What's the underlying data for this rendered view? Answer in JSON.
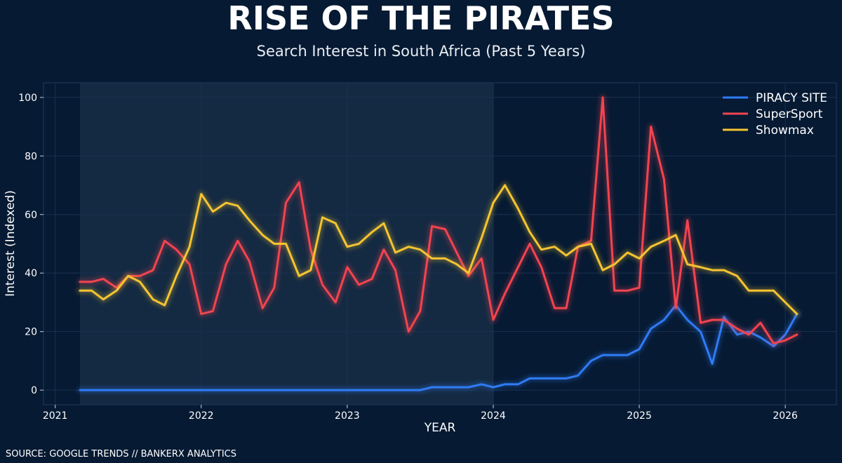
{
  "colors": {
    "background": "#061a33",
    "highlight_band": "#142a42",
    "grid": "#1a3050",
    "piracy": "#2f7bf5",
    "supersport": "#f2444f",
    "showmax": "#f5c431"
  },
  "chart_data": {
    "type": "line",
    "title": "RISE OF THE PIRATES",
    "subtitle": "Search Interest in South Africa (Past 5 Years)",
    "xlabel": "YEAR",
    "ylabel": "Interest (Indexed)",
    "source": "SOURCE: GOOGLE TRENDS // BANKERX ANALYTICS",
    "xlim": [
      2020.92,
      2026.35
    ],
    "ylim": [
      -5,
      105
    ],
    "xticks": [
      2021,
      2022,
      2023,
      2024,
      2025,
      2026
    ],
    "xtick_labels": [
      "2021",
      "2022",
      "2023",
      "2024",
      "2025",
      "2026"
    ],
    "yticks": [
      0,
      20,
      40,
      60,
      80,
      100
    ],
    "ytick_labels": [
      "0",
      "20",
      "40",
      "60",
      "80",
      "100"
    ],
    "grid": true,
    "legend_position": "top-right",
    "highlight_range": [
      2021.17,
      2024.0
    ],
    "series": [
      {
        "name": "PIRACY SITE",
        "color": "#2f7bf5",
        "x": [
          2021.17,
          2021.25,
          2021.33,
          2021.42,
          2021.5,
          2021.58,
          2021.67,
          2021.75,
          2021.83,
          2021.92,
          2022.0,
          2022.08,
          2022.17,
          2022.25,
          2022.33,
          2022.42,
          2022.5,
          2022.58,
          2022.67,
          2022.75,
          2022.83,
          2022.92,
          2023.0,
          2023.08,
          2023.17,
          2023.25,
          2023.33,
          2023.42,
          2023.5,
          2023.58,
          2023.67,
          2023.75,
          2023.83,
          2023.92,
          2024.0,
          2024.08,
          2024.17,
          2024.25,
          2024.33,
          2024.42,
          2024.5,
          2024.58,
          2024.67,
          2024.75,
          2024.83,
          2024.92,
          2025.0,
          2025.08,
          2025.17,
          2025.25,
          2025.33,
          2025.42,
          2025.5,
          2025.58,
          2025.67,
          2025.75,
          2025.83,
          2025.92,
          2026.0,
          2026.08
        ],
        "y": [
          0,
          0,
          0,
          0,
          0,
          0,
          0,
          0,
          0,
          0,
          0,
          0,
          0,
          0,
          0,
          0,
          0,
          0,
          0,
          0,
          0,
          0,
          0,
          0,
          0,
          0,
          0,
          0,
          0,
          1,
          1,
          1,
          1,
          2,
          1,
          2,
          2,
          4,
          4,
          4,
          4,
          5,
          10,
          12,
          12,
          12,
          14,
          21,
          24,
          29,
          24,
          20,
          9,
          25,
          19,
          20,
          18,
          15,
          19,
          26
        ]
      },
      {
        "name": "SuperSport",
        "color": "#f2444f",
        "x": [
          2021.17,
          2021.25,
          2021.33,
          2021.42,
          2021.5,
          2021.58,
          2021.67,
          2021.75,
          2021.83,
          2021.92,
          2022.0,
          2022.08,
          2022.17,
          2022.25,
          2022.33,
          2022.42,
          2022.5,
          2022.58,
          2022.67,
          2022.75,
          2022.83,
          2022.92,
          2023.0,
          2023.08,
          2023.17,
          2023.25,
          2023.33,
          2023.42,
          2023.5,
          2023.58,
          2023.67,
          2023.75,
          2023.83,
          2023.92,
          2024.0,
          2024.08,
          2024.17,
          2024.25,
          2024.33,
          2024.42,
          2024.5,
          2024.58,
          2024.67,
          2024.75,
          2024.83,
          2024.92,
          2025.0,
          2025.08,
          2025.17,
          2025.25,
          2025.33,
          2025.42,
          2025.5,
          2025.58,
          2025.67,
          2025.75,
          2025.83,
          2025.92,
          2026.0,
          2026.08
        ],
        "y": [
          37,
          37,
          38,
          35,
          39,
          39,
          41,
          51,
          48,
          43,
          26,
          27,
          43,
          51,
          44,
          28,
          35,
          64,
          71,
          48,
          36,
          30,
          42,
          36,
          38,
          48,
          41,
          20,
          27,
          56,
          55,
          47,
          39,
          45,
          24,
          33,
          42,
          50,
          42,
          28,
          28,
          49,
          51,
          100,
          34,
          34,
          35,
          90,
          72,
          28,
          58,
          23,
          24,
          24,
          21,
          19,
          23,
          16,
          17,
          19
        ]
      },
      {
        "name": "Showmax",
        "color": "#f5c431",
        "x": [
          2021.17,
          2021.25,
          2021.33,
          2021.42,
          2021.5,
          2021.58,
          2021.67,
          2021.75,
          2021.83,
          2021.92,
          2022.0,
          2022.08,
          2022.17,
          2022.25,
          2022.33,
          2022.42,
          2022.5,
          2022.58,
          2022.67,
          2022.75,
          2022.83,
          2022.92,
          2023.0,
          2023.08,
          2023.17,
          2023.25,
          2023.33,
          2023.42,
          2023.5,
          2023.58,
          2023.67,
          2023.75,
          2023.83,
          2023.92,
          2024.0,
          2024.08,
          2024.17,
          2024.25,
          2024.33,
          2024.42,
          2024.5,
          2024.58,
          2024.67,
          2024.75,
          2024.83,
          2024.92,
          2025.0,
          2025.08,
          2025.17,
          2025.25,
          2025.33,
          2025.42,
          2025.5,
          2025.58,
          2025.67,
          2025.75,
          2025.83,
          2025.92,
          2026.0,
          2026.08
        ],
        "y": [
          34,
          34,
          31,
          34,
          39,
          37,
          31,
          29,
          39,
          49,
          67,
          61,
          64,
          63,
          58,
          53,
          50,
          50,
          39,
          41,
          59,
          57,
          49,
          50,
          54,
          57,
          47,
          49,
          48,
          45,
          45,
          43,
          40,
          52,
          64,
          70,
          62,
          54,
          48,
          49,
          46,
          49,
          50,
          41,
          43,
          47,
          45,
          49,
          51,
          53,
          43,
          42,
          41,
          41,
          39,
          34,
          34,
          34,
          30,
          26
        ]
      }
    ]
  }
}
